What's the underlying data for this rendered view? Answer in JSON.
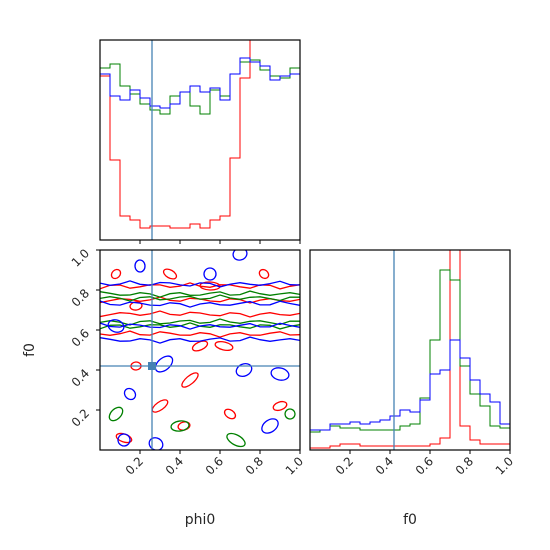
{
  "figure": {
    "colors": {
      "series_red": "#ff0000",
      "series_green": "#008000",
      "series_blue": "#0000ff",
      "truth": "#4682b4"
    }
  },
  "chart_data": [
    {
      "type": "histogram",
      "panel": "phi0-marginal",
      "xlim": [
        0,
        1
      ],
      "y_ticks_shown": false,
      "bin_edges": [
        0,
        0.05,
        0.1,
        0.15,
        0.2,
        0.25,
        0.3,
        0.35,
        0.4,
        0.45,
        0.5,
        0.55,
        0.6,
        0.65,
        0.7,
        0.75,
        0.8,
        0.85,
        0.9,
        0.95,
        1.0
      ],
      "truth_x": 0.26,
      "series": [
        {
          "color": "red",
          "values": [
            0.82,
            0.4,
            0.12,
            0.1,
            0.06,
            0.07,
            0.07,
            0.06,
            0.06,
            0.08,
            0.06,
            0.1,
            0.12,
            0.41,
            0.81,
            1.12,
            1.12,
            1.12,
            1.12,
            1.12
          ]
        },
        {
          "color": "green",
          "values": [
            0.86,
            0.88,
            0.77,
            0.73,
            0.68,
            0.65,
            0.63,
            0.72,
            0.74,
            0.67,
            0.63,
            0.75,
            0.72,
            0.83,
            0.89,
            0.9,
            0.85,
            0.82,
            0.81,
            0.86
          ]
        },
        {
          "color": "blue",
          "values": [
            0.83,
            0.72,
            0.7,
            0.75,
            0.71,
            0.67,
            0.66,
            0.68,
            0.74,
            0.77,
            0.74,
            0.76,
            0.7,
            0.83,
            0.91,
            0.89,
            0.87,
            0.8,
            0.82,
            0.83
          ]
        }
      ]
    },
    {
      "type": "contour",
      "panel": "phi0-vs-f0",
      "xlabel": "phi0",
      "ylabel": "f0",
      "xlim": [
        0,
        1
      ],
      "ylim": [
        0,
        1
      ],
      "x_ticks": [
        "0.2",
        "0.4",
        "0.6",
        "0.8",
        "1.0"
      ],
      "y_ticks": [
        "0.2",
        "0.4",
        "0.6",
        "0.8",
        "1.0"
      ],
      "truth_point": [
        0.26,
        0.42
      ],
      "series": [
        {
          "color": "red",
          "bands_f0": [
            [
              0.58,
              0.68
            ],
            [
              0.75,
              0.82
            ]
          ],
          "spots": [
            [
              0.08,
              0.88
            ],
            [
              0.18,
              0.72
            ],
            [
              0.35,
              0.88
            ],
            [
              0.5,
              0.52
            ],
            [
              0.62,
              0.52
            ],
            [
              0.45,
              0.35
            ],
            [
              0.18,
              0.42
            ],
            [
              0.65,
              0.18
            ],
            [
              0.9,
              0.22
            ],
            [
              0.12,
              0.06
            ],
            [
              0.3,
              0.22
            ],
            [
              0.55,
              0.82
            ],
            [
              0.82,
              0.88
            ],
            [
              0.42,
              0.12
            ]
          ]
        },
        {
          "color": "green",
          "bands_f0": [
            [
              0.62,
              0.64
            ],
            [
              0.76,
              0.78
            ]
          ],
          "spots": [
            [
              0.08,
              0.18
            ],
            [
              0.4,
              0.12
            ],
            [
              0.68,
              0.05
            ],
            [
              0.95,
              0.18
            ]
          ]
        },
        {
          "color": "blue",
          "bands_f0": [
            [
              0.55,
              0.62
            ],
            [
              0.73,
              0.83
            ]
          ],
          "spots": [
            [
              0.15,
              0.28
            ],
            [
              0.12,
              0.05
            ],
            [
              0.28,
              0.03
            ],
            [
              0.72,
              0.4
            ],
            [
              0.9,
              0.38
            ],
            [
              0.32,
              0.43
            ],
            [
              0.2,
              0.92
            ],
            [
              0.55,
              0.88
            ],
            [
              0.7,
              0.98
            ],
            [
              0.08,
              0.62
            ],
            [
              0.85,
              0.12
            ]
          ]
        }
      ]
    },
    {
      "type": "histogram",
      "panel": "f0-marginal",
      "xlabel": "f0",
      "xlim": [
        0,
        1
      ],
      "x_ticks": [
        "0.2",
        "0.4",
        "0.6",
        "0.8",
        "1.0"
      ],
      "y_ticks_shown": false,
      "bin_edges": [
        0,
        0.05,
        0.1,
        0.15,
        0.2,
        0.25,
        0.3,
        0.35,
        0.4,
        0.45,
        0.5,
        0.55,
        0.6,
        0.65,
        0.7,
        0.75,
        0.8,
        0.85,
        0.9,
        0.95,
        1.0
      ],
      "truth_x": 0.42,
      "series": [
        {
          "color": "red",
          "values": [
            0.01,
            0.01,
            0.02,
            0.03,
            0.03,
            0.02,
            0.02,
            0.02,
            0.02,
            0.02,
            0.02,
            0.02,
            0.03,
            0.06,
            1.1,
            0.12,
            0.05,
            0.03,
            0.03,
            0.03
          ]
        },
        {
          "color": "green",
          "values": [
            0.09,
            0.1,
            0.12,
            0.11,
            0.11,
            0.1,
            0.1,
            0.1,
            0.1,
            0.12,
            0.13,
            0.26,
            0.55,
            0.9,
            0.85,
            0.42,
            0.28,
            0.22,
            0.12,
            0.11
          ]
        },
        {
          "color": "blue",
          "values": [
            0.1,
            0.1,
            0.13,
            0.13,
            0.14,
            0.13,
            0.14,
            0.15,
            0.17,
            0.2,
            0.19,
            0.25,
            0.38,
            0.4,
            0.55,
            0.46,
            0.35,
            0.28,
            0.24,
            0.13
          ]
        }
      ]
    }
  ]
}
